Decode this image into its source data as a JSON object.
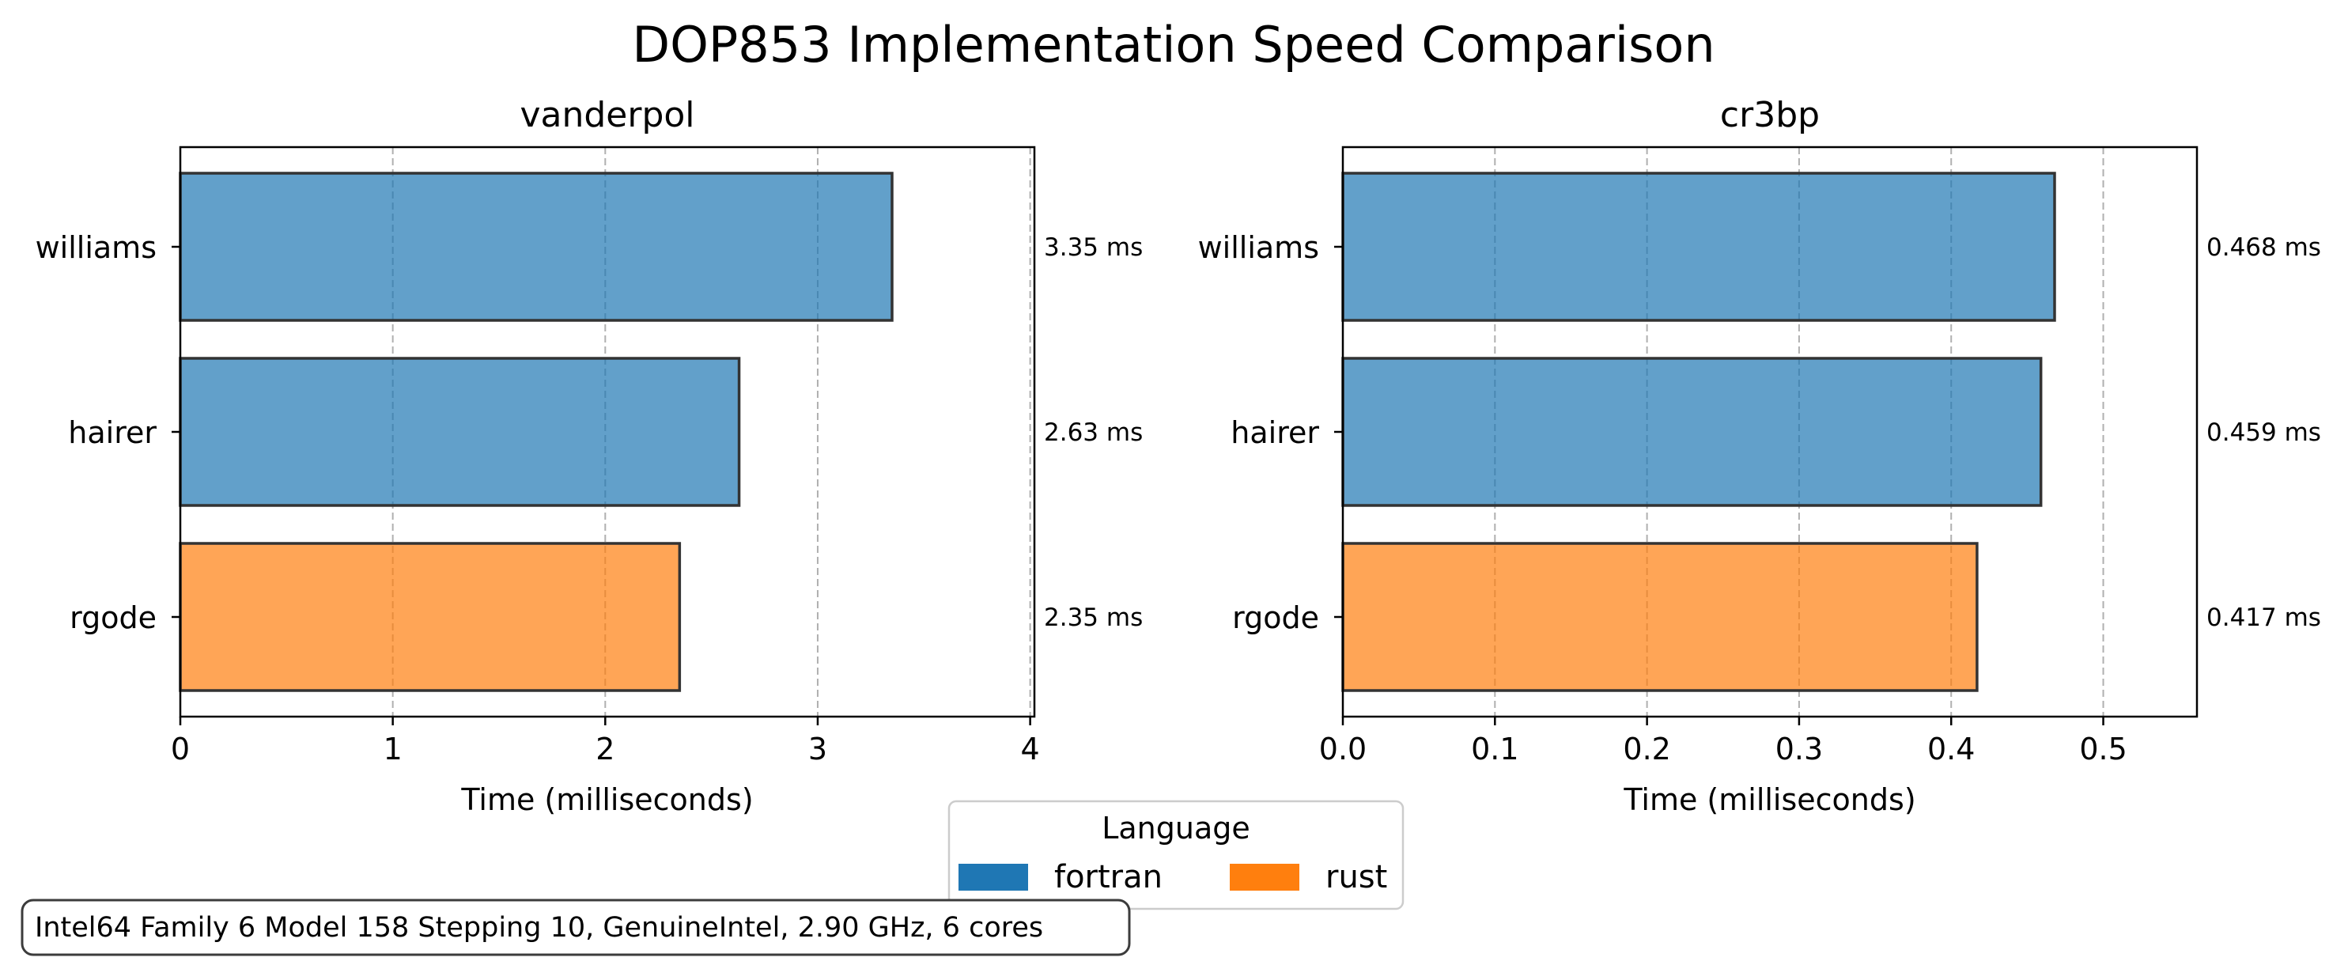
{
  "chart_data": {
    "title": "DOP853 Implementation Speed Comparison",
    "type": "bar",
    "orientation": "horizontal",
    "legend": {
      "title": "Language",
      "placement": "bottom-center",
      "entries": [
        {
          "name": "fortran",
          "color": "#1f77b4"
        },
        {
          "name": "rust",
          "color": "#ff7f0e"
        }
      ]
    },
    "footer_note": "Intel64 Family 6 Model 158 Stepping 10, GenuineIntel, 2.90 GHz, 6 cores",
    "panels": [
      {
        "title": "vanderpol",
        "xlabel": "Time (milliseconds)",
        "xlim": [
          0,
          4.02
        ],
        "xticks": [
          0,
          1,
          2,
          3,
          4
        ],
        "xtick_labels": [
          "0",
          "1",
          "2",
          "3",
          "4"
        ],
        "grid": "x-dashed",
        "categories": [
          "williams",
          "hairer",
          "rgode"
        ],
        "values": [
          3.35,
          2.63,
          2.35
        ],
        "languages": [
          "fortran",
          "fortran",
          "rust"
        ],
        "value_labels": [
          "3.35 ms",
          "2.63 ms",
          "2.35 ms"
        ]
      },
      {
        "title": "cr3bp",
        "xlabel": "Time (milliseconds)",
        "xlim": [
          0,
          0.5616
        ],
        "xticks": [
          0,
          0.1,
          0.2,
          0.3,
          0.4,
          0.5
        ],
        "xtick_labels": [
          "0.0",
          "0.1",
          "0.2",
          "0.3",
          "0.4",
          "0.5"
        ],
        "grid": "x-dashed",
        "categories": [
          "williams",
          "hairer",
          "rgode"
        ],
        "values": [
          0.468,
          0.459,
          0.417
        ],
        "languages": [
          "fortran",
          "fortran",
          "rust"
        ],
        "value_labels": [
          "0.468 ms",
          "0.459 ms",
          "0.417 ms"
        ]
      }
    ]
  }
}
